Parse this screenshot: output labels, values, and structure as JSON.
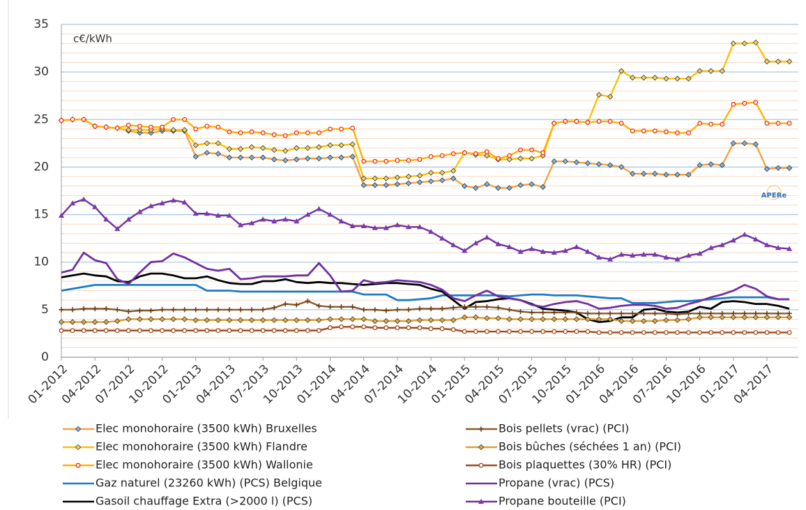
{
  "chart_data": {
    "type": "line",
    "annotation": "c€/kWh",
    "logo": "APERe",
    "categories": [
      "01-2012",
      null,
      null,
      "04-2012",
      null,
      null,
      "07-2012",
      null,
      null,
      "10-2012",
      null,
      null,
      "01-2013",
      null,
      null,
      "04-2013",
      null,
      null,
      "07-2013",
      null,
      null,
      "10-2013",
      null,
      null,
      "01-2014",
      null,
      null,
      "04-2014",
      null,
      null,
      "07-2014",
      null,
      null,
      "10-2014",
      null,
      null,
      "01-2015",
      null,
      null,
      "04-2015",
      null,
      null,
      "07-2015",
      null,
      null,
      "10-2015",
      null,
      null,
      "01-2016",
      null,
      null,
      "04-2016",
      null,
      null,
      "07-2016",
      null,
      null,
      "10-2016",
      null,
      null,
      "01-2017",
      null,
      null,
      "04-2017",
      null,
      null
    ],
    "ylim": [
      0,
      35
    ],
    "yticks": [
      0,
      5,
      10,
      15,
      20,
      25,
      30,
      35
    ],
    "grid": true,
    "legend": "bottom",
    "series": [
      {
        "name": "Elec monohoraire (3500 kWh) Bruxelles",
        "color": "#f5a142",
        "marker": "diamond",
        "marker_color": "#7fb2dd",
        "values": [
          24.9,
          25.0,
          25.0,
          24.3,
          24.2,
          24.1,
          23.8,
          23.6,
          23.6,
          23.8,
          23.8,
          23.8,
          21.1,
          21.5,
          21.4,
          21.0,
          21.0,
          21.0,
          21.0,
          20.8,
          20.7,
          20.8,
          20.9,
          20.9,
          21.0,
          21.0,
          21.1,
          18.1,
          18.1,
          18.1,
          18.2,
          18.3,
          18.4,
          18.5,
          18.6,
          18.8,
          18.0,
          17.8,
          18.2,
          17.8,
          17.8,
          18.1,
          18.2,
          17.9,
          20.6,
          20.6,
          20.5,
          20.4,
          20.3,
          20.2,
          20.0,
          19.3,
          19.3,
          19.3,
          19.2,
          19.2,
          19.2,
          20.2,
          20.3,
          20.2,
          22.5,
          22.5,
          22.4,
          19.8,
          19.9,
          19.9
        ]
      },
      {
        "name": "Elec monohoraire (3500 kWh) Flandre",
        "color": "#ffc000",
        "marker": "diamond",
        "marker_color": "#f2d36b",
        "values": [
          24.9,
          25.0,
          25.0,
          24.3,
          24.2,
          24.1,
          23.9,
          23.9,
          23.9,
          24.0,
          23.9,
          23.9,
          22.3,
          22.5,
          22.5,
          21.9,
          21.9,
          22.1,
          22.0,
          21.8,
          21.7,
          22.0,
          22.0,
          22.1,
          22.3,
          22.3,
          22.4,
          18.8,
          18.8,
          18.8,
          18.9,
          19.0,
          19.1,
          19.4,
          19.4,
          19.6,
          21.5,
          21.3,
          21.2,
          20.8,
          20.8,
          20.9,
          20.9,
          21.2,
          24.6,
          24.8,
          24.8,
          24.7,
          27.6,
          27.4,
          30.1,
          29.4,
          29.4,
          29.4,
          29.3,
          29.3,
          29.3,
          30.1,
          30.1,
          30.1,
          33.0,
          33.0,
          33.1,
          31.1,
          31.1,
          31.1
        ]
      },
      {
        "name": "Elec monohoraire (3500 kWh) Wallonie",
        "color": "#ffb000",
        "marker": "circle",
        "marker_color": "#ff2a00",
        "values": [
          24.9,
          25.0,
          25.0,
          24.3,
          24.2,
          24.1,
          24.4,
          24.3,
          24.2,
          24.2,
          25.0,
          25.0,
          24.0,
          24.3,
          24.2,
          23.7,
          23.6,
          23.7,
          23.6,
          23.4,
          23.3,
          23.6,
          23.6,
          23.6,
          24.0,
          24.0,
          24.1,
          20.6,
          20.6,
          20.6,
          20.7,
          20.7,
          20.8,
          21.1,
          21.2,
          21.4,
          21.5,
          21.4,
          21.6,
          20.9,
          21.2,
          21.8,
          21.8,
          21.5,
          24.6,
          24.8,
          24.8,
          24.7,
          24.8,
          24.8,
          24.6,
          23.8,
          23.8,
          23.8,
          23.7,
          23.6,
          23.6,
          24.6,
          24.5,
          24.5,
          26.6,
          26.7,
          26.8,
          24.6,
          24.6,
          24.6
        ]
      },
      {
        "name": "Gaz naturel (23260 kWh) (PCS) Belgique",
        "color": "#1a7bc6",
        "values": [
          7.0,
          7.2,
          7.4,
          7.6,
          7.6,
          7.6,
          7.6,
          7.6,
          7.6,
          7.6,
          7.6,
          7.6,
          7.6,
          7.0,
          7.0,
          7.0,
          6.9,
          6.9,
          6.9,
          6.9,
          6.9,
          6.9,
          6.9,
          6.9,
          6.9,
          6.9,
          6.9,
          6.6,
          6.6,
          6.6,
          6.0,
          6.0,
          6.1,
          6.2,
          6.5,
          6.5,
          6.5,
          6.5,
          6.5,
          6.5,
          6.4,
          6.5,
          6.6,
          6.6,
          6.5,
          6.5,
          6.5,
          6.4,
          6.3,
          6.2,
          6.2,
          5.7,
          5.7,
          5.7,
          5.8,
          5.9,
          5.9,
          6.0,
          6.1,
          6.2,
          6.3,
          6.3,
          6.3,
          6.3,
          6.1,
          6.1
        ]
      },
      {
        "name": "Gasoil chauffage Extra (>2000 l) (PCS)",
        "color": "#000000",
        "values": [
          8.4,
          8.6,
          8.8,
          8.6,
          8.5,
          8.0,
          7.9,
          8.5,
          8.8,
          8.8,
          8.6,
          8.3,
          8.3,
          8.5,
          8.1,
          7.8,
          7.7,
          7.7,
          8.0,
          8.0,
          8.2,
          7.9,
          7.8,
          7.9,
          7.8,
          7.8,
          7.7,
          7.6,
          7.7,
          7.8,
          7.8,
          7.7,
          7.6,
          7.2,
          6.9,
          6.0,
          5.1,
          5.8,
          5.9,
          6.1,
          6.2,
          6.0,
          5.6,
          5.1,
          5.0,
          4.9,
          4.7,
          4.0,
          3.7,
          3.8,
          4.2,
          4.2,
          5.0,
          5.1,
          4.8,
          4.7,
          4.8,
          5.3,
          5.1,
          5.8,
          5.9,
          5.8,
          5.6,
          5.6,
          5.4,
          5.1
        ]
      },
      {
        "name": "Bois pellets (vrac) (PCI)",
        "color": "#8b5a2b",
        "marker": "plus",
        "marker_color": "#6b3e17",
        "values": [
          5.0,
          5.0,
          5.1,
          5.1,
          5.1,
          5.0,
          4.8,
          4.9,
          4.9,
          5.0,
          5.0,
          5.0,
          5.0,
          5.0,
          5.0,
          5.0,
          5.0,
          5.0,
          5.0,
          5.2,
          5.6,
          5.5,
          5.9,
          5.4,
          5.3,
          5.3,
          5.3,
          5.0,
          5.0,
          4.9,
          5.0,
          5.0,
          5.1,
          5.1,
          5.1,
          5.2,
          5.3,
          5.3,
          5.3,
          5.2,
          5.0,
          4.8,
          4.7,
          4.7,
          4.7,
          4.7,
          4.7,
          4.6,
          4.6,
          4.6,
          4.6,
          4.6,
          4.6,
          4.6,
          4.6,
          4.5,
          4.6,
          4.6,
          4.6,
          4.6,
          4.6,
          4.6,
          4.6,
          4.6,
          4.6,
          4.6
        ]
      },
      {
        "name": "Bois bûches (séchées 1 an) (PCI)",
        "color": "#d9a032",
        "marker": "diamond",
        "marker_color": "#e6a83a",
        "values": [
          3.7,
          3.7,
          3.7,
          3.7,
          3.7,
          3.8,
          4.0,
          4.0,
          4.0,
          4.0,
          4.0,
          4.0,
          3.9,
          3.9,
          3.9,
          3.9,
          3.9,
          3.9,
          3.9,
          3.9,
          3.9,
          3.9,
          3.9,
          3.9,
          4.0,
          4.0,
          4.0,
          4.0,
          3.8,
          3.8,
          3.8,
          3.8,
          3.9,
          3.9,
          3.9,
          3.9,
          4.2,
          4.2,
          4.1,
          4.1,
          4.0,
          4.0,
          4.0,
          4.0,
          4.0,
          4.0,
          4.0,
          4.0,
          4.0,
          4.0,
          3.8,
          3.8,
          3.8,
          3.8,
          3.9,
          3.9,
          4.0,
          4.2,
          4.2,
          4.2,
          4.2,
          4.2,
          4.2,
          4.2,
          4.2,
          4.2
        ]
      },
      {
        "name": "Bois plaquettes (30% HR) (PCI)",
        "color": "#9c4a1a",
        "marker": "circle",
        "marker_color": "#9c4a1a",
        "values": [
          2.8,
          2.8,
          2.8,
          2.8,
          2.8,
          2.8,
          2.8,
          2.8,
          2.8,
          2.8,
          2.8,
          2.8,
          2.8,
          2.8,
          2.8,
          2.8,
          2.8,
          2.8,
          2.8,
          2.8,
          2.8,
          2.8,
          2.8,
          2.8,
          3.1,
          3.2,
          3.2,
          3.2,
          3.1,
          3.1,
          3.1,
          3.1,
          3.1,
          3.0,
          3.0,
          2.9,
          2.7,
          2.7,
          2.7,
          2.7,
          2.7,
          2.7,
          2.7,
          2.7,
          2.7,
          2.7,
          2.7,
          2.7,
          2.6,
          2.6,
          2.6,
          2.6,
          2.6,
          2.6,
          2.6,
          2.6,
          2.6,
          2.6,
          2.6,
          2.6,
          2.6,
          2.6,
          2.6,
          2.6,
          2.6,
          2.6
        ]
      },
      {
        "name": "Propane (vrac) (PCS)",
        "color": "#7030a0",
        "values": [
          8.9,
          9.2,
          11.0,
          10.2,
          9.9,
          8.2,
          7.7,
          8.9,
          10.0,
          10.1,
          10.9,
          10.5,
          9.9,
          9.3,
          9.1,
          9.3,
          8.2,
          8.3,
          8.5,
          8.5,
          8.5,
          8.6,
          8.6,
          9.9,
          8.6,
          6.9,
          7.0,
          8.1,
          7.8,
          7.9,
          8.1,
          8.0,
          7.9,
          7.6,
          7.1,
          6.2,
          5.9,
          6.5,
          7.0,
          6.4,
          6.2,
          6.0,
          5.5,
          5.3,
          5.6,
          5.8,
          5.9,
          5.6,
          5.1,
          5.2,
          5.4,
          5.5,
          5.5,
          5.4,
          5.1,
          5.2,
          5.6,
          5.9,
          6.3,
          6.6,
          7.0,
          7.6,
          7.2,
          6.4,
          6.1,
          6.1
        ]
      },
      {
        "name": "Propane bouteille (PCI)",
        "color": "#7030a0",
        "marker": "triangle",
        "marker_color": "#7a3aa8",
        "values": [
          14.9,
          16.2,
          16.6,
          15.8,
          14.5,
          13.5,
          14.5,
          15.3,
          15.9,
          16.2,
          16.5,
          16.3,
          15.1,
          15.1,
          14.9,
          14.9,
          13.9,
          14.1,
          14.5,
          14.3,
          14.5,
          14.3,
          15.0,
          15.6,
          15.0,
          14.3,
          13.8,
          13.8,
          13.6,
          13.6,
          13.9,
          13.7,
          13.7,
          13.2,
          12.5,
          11.8,
          11.2,
          12.0,
          12.6,
          11.9,
          11.6,
          11.1,
          11.4,
          11.1,
          11.0,
          11.2,
          11.6,
          11.1,
          10.5,
          10.3,
          10.8,
          10.7,
          10.8,
          10.8,
          10.5,
          10.3,
          10.7,
          10.9,
          11.5,
          11.8,
          12.3,
          12.9,
          12.4,
          11.8,
          11.5,
          11.4
        ]
      }
    ]
  }
}
